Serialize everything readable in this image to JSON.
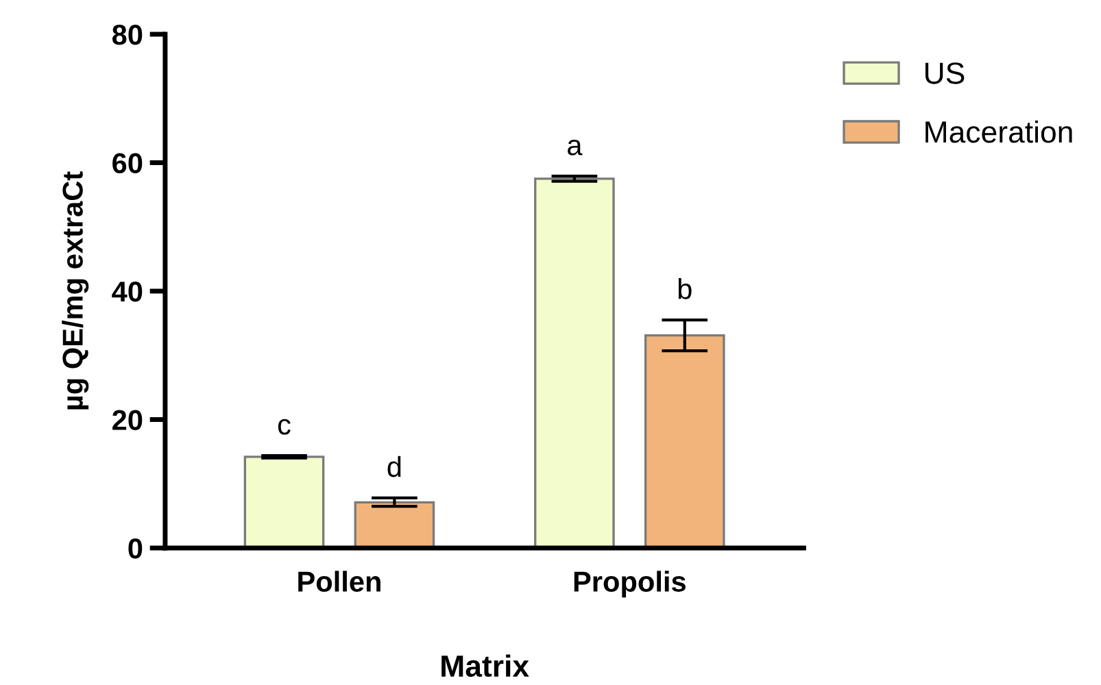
{
  "chart_data": {
    "type": "bar",
    "xlabel": "Matrix",
    "ylabel": "µg QE/mg extraCt",
    "categories": [
      "Pollen",
      "Propolis"
    ],
    "series": [
      {
        "name": "US",
        "color": "#f3fccb",
        "values": [
          14.2,
          57.5
        ],
        "errors": [
          0.2,
          0.4
        ]
      },
      {
        "name": "Maceration",
        "color": "#f2b47b",
        "values": [
          7.1,
          33.1
        ],
        "errors": [
          [
            6.5,
            7.8
          ],
          [
            30.7,
            35.5
          ]
        ]
      }
    ],
    "annotations": [
      "c",
      "d",
      "a",
      "b"
    ],
    "ylim": [
      0,
      80
    ],
    "yticks": [
      0,
      20,
      40,
      60,
      80
    ],
    "grid": false,
    "legend": "top right"
  }
}
